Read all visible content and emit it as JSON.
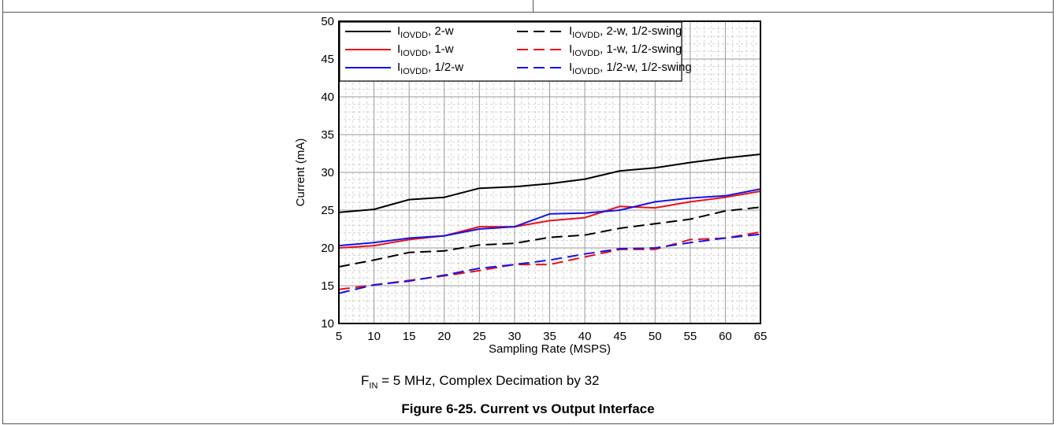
{
  "chart_data": {
    "type": "line",
    "xlabel": "Sampling Rate (MSPS)",
    "ylabel": "Current (mA)",
    "xlim": [
      5,
      65
    ],
    "ylim": [
      10,
      50
    ],
    "xticks": [
      5,
      10,
      15,
      20,
      25,
      30,
      35,
      40,
      45,
      50,
      55,
      60,
      65
    ],
    "yticks": [
      10,
      15,
      20,
      25,
      30,
      35,
      40,
      45,
      50
    ],
    "grid": true,
    "legend_position": "top-left",
    "x": [
      5,
      10,
      15,
      20,
      25,
      30,
      35,
      40,
      45,
      50,
      55,
      60,
      65
    ],
    "series": [
      {
        "name_main": "I",
        "name_sub": "IOVDD",
        "name_rest": ", 2-w",
        "color": "#000000",
        "dash": false,
        "values": [
          24.7,
          25.1,
          26.4,
          26.7,
          27.9,
          28.1,
          28.5,
          29.1,
          30.2,
          30.6,
          31.3,
          31.9,
          32.4
        ]
      },
      {
        "name_main": "I",
        "name_sub": "IOVDD",
        "name_rest": ", 1-w",
        "color": "#e8101a",
        "dash": false,
        "values": [
          20.0,
          20.3,
          21.1,
          21.6,
          22.8,
          22.8,
          23.6,
          24.0,
          25.5,
          25.3,
          26.1,
          26.7,
          27.5
        ]
      },
      {
        "name_main": "I",
        "name_sub": "IOVDD",
        "name_rest": ", 1/2-w",
        "color": "#1414e6",
        "dash": false,
        "values": [
          20.3,
          20.7,
          21.3,
          21.6,
          22.5,
          22.8,
          24.5,
          24.6,
          25.0,
          26.1,
          26.6,
          26.9,
          27.8
        ]
      },
      {
        "name_main": "I",
        "name_sub": "IOVDD",
        "name_rest": ", 2-w, 1/2-swing",
        "color": "#000000",
        "dash": true,
        "values": [
          17.5,
          18.4,
          19.4,
          19.6,
          20.4,
          20.6,
          21.4,
          21.7,
          22.6,
          23.2,
          23.8,
          24.9,
          25.4
        ]
      },
      {
        "name_main": "I",
        "name_sub": "IOVDD",
        "name_rest": ", 1-w, 1/2-swing",
        "color": "#e8101a",
        "dash": true,
        "values": [
          14.5,
          15.1,
          15.7,
          16.3,
          17.0,
          17.8,
          17.8,
          18.8,
          19.8,
          19.8,
          21.1,
          21.3,
          22.1
        ]
      },
      {
        "name_main": "I",
        "name_sub": "IOVDD",
        "name_rest": ", 1/2-w, 1/2-swing",
        "color": "#1414e6",
        "dash": true,
        "values": [
          14.0,
          15.1,
          15.6,
          16.4,
          17.3,
          17.8,
          18.4,
          19.2,
          19.9,
          20.0,
          20.7,
          21.3,
          21.8
        ]
      }
    ]
  },
  "condition": {
    "prefix": "F",
    "sub": "IN",
    "rest": " = 5 MHz, Complex Decimation by 32"
  },
  "caption": "Figure 6-25. Current vs Output Interface"
}
